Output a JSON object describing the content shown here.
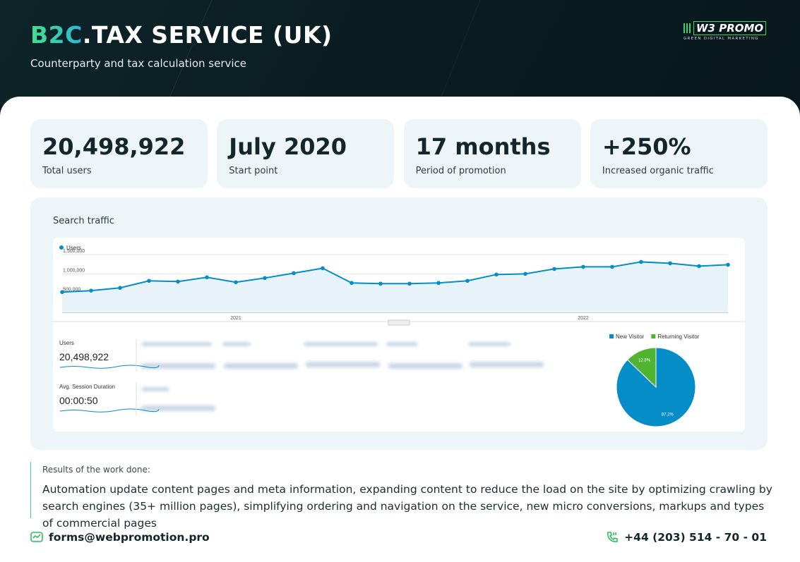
{
  "header": {
    "title_accent": "B2C",
    "title": ".TAX SERVICE (UK)",
    "subtitle": "Counterparty and tax calculation service",
    "logo": "W3 PROMO",
    "logo_tagline": "GREEN DIGITAL MARKETING"
  },
  "stats": [
    {
      "value": "20,498,922",
      "label": "Total users"
    },
    {
      "value": "July 2020",
      "label": "Start point"
    },
    {
      "value": "17 months",
      "label": "Period of promotion"
    },
    {
      "value": "+250%",
      "label": "Increased organic traffic"
    }
  ],
  "section_title": "Search traffic",
  "chart_data": [
    {
      "type": "line",
      "categories": [
        null,
        null,
        null,
        null,
        null,
        null,
        "2021",
        null,
        null,
        null,
        null,
        null,
        null,
        null,
        null,
        null,
        null,
        null,
        "2022",
        null,
        null,
        null,
        null,
        null
      ],
      "series": [
        {
          "name": "Users",
          "color": "#058dc7",
          "values": [
            527000,
            564000,
            636000,
            818000,
            800000,
            909000,
            782000,
            891000,
            1018000,
            1145000,
            764000,
            745000,
            745000,
            764000,
            818000,
            982000,
            1000000,
            1127000,
            1182000,
            1182000,
            1309000,
            1273000,
            1200000,
            1236000
          ]
        }
      ],
      "ylim": [
        0,
        1500000
      ],
      "yticks": [
        {
          "value": 500000,
          "label": "500,000"
        },
        {
          "value": 1000000,
          "label": "1,000,000"
        },
        {
          "value": 1500000,
          "label": "1,500,000"
        }
      ],
      "grid": true
    },
    {
      "type": "pie",
      "categories": [
        "New Visitor",
        "Returning Visitor"
      ],
      "values": [
        87.2,
        12.8
      ],
      "value_labels": [
        "87.2%",
        "12.8%"
      ],
      "colors": [
        "#058dc7",
        "#50b432"
      ]
    }
  ],
  "metrics": [
    {
      "label": "Users",
      "value": "20,498,922"
    },
    {
      "label": "Avg. Session Duration",
      "value": "00:00:50"
    }
  ],
  "results": {
    "label": "Results of the work done:",
    "text": "Automation update content pages and meta information, expanding content to reduce the load on the site by optimizing crawling by search engines (35+ million pages), simplifying ordering and navigation on the service, new micro conversions, markups and types of commercial pages"
  },
  "contacts": {
    "email": "forms@webpromotion.pro",
    "phone": "+44 (203) 514 - 70 - 01"
  }
}
